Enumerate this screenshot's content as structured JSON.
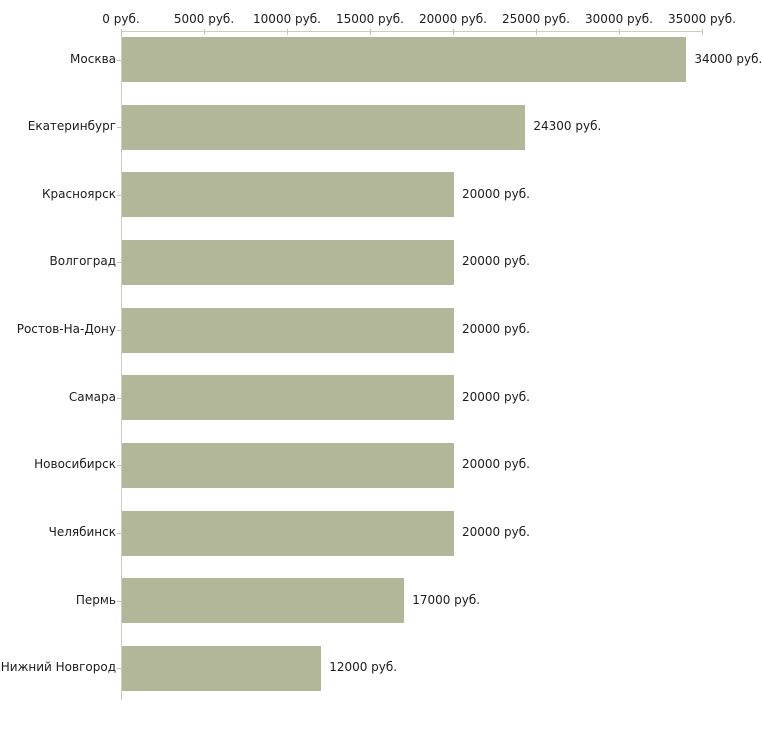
{
  "chart_data": {
    "type": "bar",
    "orientation": "horizontal",
    "title": "",
    "xlabel": "",
    "ylabel": "",
    "categories": [
      "Москва",
      "Екатеринбург",
      "Красноярск",
      "Волгоград",
      "Ростов-На-Дону",
      "Самара",
      "Новосибирск",
      "Челябинск",
      "Пермь",
      "Нижний Новгород"
    ],
    "values": [
      34000,
      24300,
      20000,
      20000,
      20000,
      20000,
      20000,
      20000,
      17000,
      12000
    ],
    "value_labels": [
      "34000 руб.",
      "24300 руб.",
      "20000 руб.",
      "20000 руб.",
      "20000 руб.",
      "20000 руб.",
      "20000 руб.",
      "20000 руб.",
      "17000 руб.",
      "12000 руб."
    ],
    "xlim": [
      0,
      35000
    ],
    "x_ticks": [
      0,
      5000,
      10000,
      15000,
      20000,
      25000,
      30000,
      35000
    ],
    "x_tick_labels": [
      "0 руб.",
      "5000 руб.",
      "10000 руб.",
      "15000 руб.",
      "20000 руб.",
      "25000 руб.",
      "30000 руб.",
      "35000 руб."
    ],
    "axis_position": "top",
    "grid": false,
    "legend": null,
    "bar_color": "#b2b79a",
    "axis_color": "#cbcfbc",
    "tick_color": "#c3c8ae",
    "text_color": "#1c1c1c"
  }
}
